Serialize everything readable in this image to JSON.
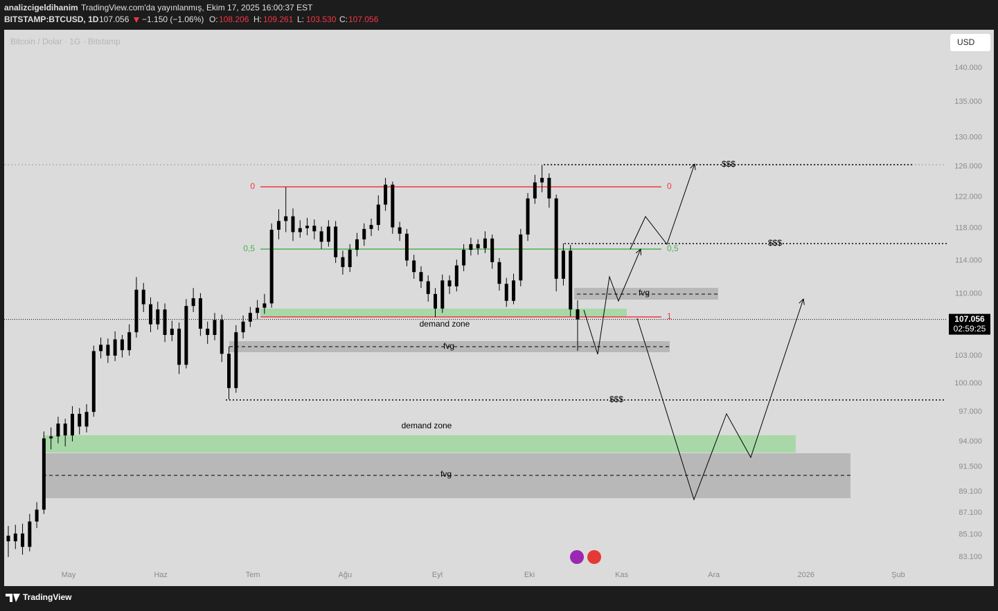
{
  "header": {
    "author": "analizcigeldihanim",
    "published": "TradingView.com'da yayınlanmış, Ekim 17, 2025 16:00:37 EST",
    "symbol": "BITSTAMP:BTCUSD, 1D",
    "price": "107.056",
    "change": "−1.150 (−1.06%)",
    "open_label": "O:",
    "open": "108.206",
    "high_label": "H:",
    "high": "109.261",
    "low_label": "L:",
    "low": "103.530",
    "close_label": "C:",
    "close": "107.056",
    "watermark": "Bitcoin / Dolar · 1G · Bitstamp",
    "currency": "USD",
    "brand": "TradingView"
  },
  "chart_data": {
    "type": "candlestick",
    "candle_color": "#000000",
    "log_scale": true,
    "grid": false,
    "ylim": [
      82300,
      145800
    ],
    "yticks": [
      {
        "value": 140000,
        "label": "140.000"
      },
      {
        "value": 135000,
        "label": "135.000"
      },
      {
        "value": 130000,
        "label": "130.000"
      },
      {
        "value": 126000,
        "label": "126.000"
      },
      {
        "value": 122000,
        "label": "122.000"
      },
      {
        "value": 118000,
        "label": "118.000"
      },
      {
        "value": 114000,
        "label": "114.000"
      },
      {
        "value": 110000,
        "label": "110.000"
      },
      {
        "value": 103000,
        "label": "103.000"
      },
      {
        "value": 100000,
        "label": "100.000"
      },
      {
        "value": 97000,
        "label": "97.000"
      },
      {
        "value": 94000,
        "label": "94.000"
      },
      {
        "value": 91500,
        "label": "91.500"
      },
      {
        "value": 89100,
        "label": "89.100"
      },
      {
        "value": 87100,
        "label": "87.100"
      },
      {
        "value": 85100,
        "label": "85.100"
      },
      {
        "value": 83100,
        "label": "83.100"
      }
    ],
    "x_labels": [
      "May",
      "Haz",
      "Tem",
      "Ağu",
      "Eyl",
      "Eki",
      "Kas",
      "Ara",
      "2026",
      "Şub"
    ],
    "last_price": {
      "value": 107056,
      "label": "107.056"
    },
    "countdown": "02:59:25",
    "open": [
      85000,
      84500,
      85200,
      84000,
      86300,
      87400,
      94300,
      94500,
      95800,
      94600,
      96800,
      95500,
      97000,
      103500,
      104200,
      103000,
      104800,
      103600,
      105600,
      110500,
      108800,
      106500,
      108200,
      105300,
      106000,
      102000,
      108600,
      109500,
      106000,
      105300,
      107000,
      103200,
      99500,
      105600,
      106800,
      107800,
      108400,
      108900,
      117800,
      118900,
      119500,
      117500,
      118000,
      118300,
      117600,
      116300,
      118200,
      114400,
      113200,
      115300,
      116600,
      117900,
      118400,
      121000,
      123600,
      118100,
      117300,
      114000,
      112600,
      111500,
      110000,
      108300,
      111600,
      110900,
      113400,
      115300,
      116000,
      115500,
      116700,
      113800,
      111200,
      109200,
      111600,
      117200,
      121800,
      123900,
      124500,
      121800,
      111800,
      115200,
      108206
    ],
    "high": [
      85900,
      86000,
      86100,
      87000,
      88100,
      95000,
      95400,
      96500,
      96300,
      97600,
      97400,
      97800,
      104100,
      105000,
      104900,
      105700,
      105300,
      106500,
      112000,
      111300,
      109600,
      109100,
      108900,
      106900,
      106700,
      109400,
      110700,
      110100,
      106800,
      107800,
      107600,
      104000,
      106400,
      107500,
      108500,
      109300,
      110000,
      118600,
      120400,
      123300,
      120500,
      119000,
      119300,
      119100,
      118200,
      119000,
      118900,
      115200,
      116000,
      117400,
      118600,
      119200,
      122200,
      124500,
      124000,
      118800,
      117900,
      114700,
      113300,
      112200,
      110700,
      112300,
      112200,
      114100,
      116000,
      116800,
      116600,
      117600,
      117200,
      114300,
      111900,
      112400,
      117900,
      122500,
      124900,
      126200,
      125100,
      122300,
      116100,
      115900,
      109261
    ],
    "low": [
      83100,
      83800,
      83300,
      83600,
      85700,
      87000,
      93200,
      93800,
      93500,
      94000,
      94700,
      94900,
      96500,
      102700,
      102200,
      102400,
      102800,
      103000,
      105000,
      107900,
      105600,
      105900,
      104500,
      104600,
      101000,
      101600,
      107900,
      105200,
      104300,
      104700,
      102300,
      98300,
      99000,
      104900,
      106200,
      107100,
      107700,
      108400,
      116600,
      117500,
      116400,
      116800,
      117100,
      116600,
      115400,
      115700,
      113700,
      112300,
      112600,
      114500,
      115800,
      117000,
      117700,
      120200,
      117300,
      116400,
      113300,
      111800,
      110700,
      109100,
      107300,
      107800,
      110000,
      110300,
      112700,
      114600,
      114700,
      114900,
      113000,
      110400,
      108500,
      108800,
      110900,
      116400,
      121100,
      122600,
      120600,
      110300,
      111000,
      107400,
      103530
    ],
    "close": [
      84500,
      85200,
      84000,
      86300,
      87400,
      94300,
      94500,
      95800,
      94600,
      96800,
      95500,
      97000,
      103500,
      104200,
      103000,
      104800,
      103600,
      105600,
      110500,
      108800,
      106500,
      108200,
      105300,
      106000,
      102000,
      108600,
      109500,
      106000,
      105300,
      107000,
      103200,
      99500,
      105600,
      106800,
      107800,
      108400,
      108900,
      117800,
      118900,
      119500,
      117500,
      118000,
      118300,
      117600,
      116300,
      118200,
      114400,
      113200,
      115300,
      116600,
      117900,
      118400,
      121000,
      123600,
      118100,
      117300,
      114000,
      112600,
      111500,
      110000,
      108300,
      111600,
      110900,
      113400,
      115300,
      116000,
      115500,
      116700,
      113800,
      111200,
      109200,
      111600,
      117200,
      121800,
      123900,
      124500,
      121800,
      111800,
      115200,
      108200,
      107056
    ]
  },
  "annotations": {
    "fib_left": [
      "0",
      "0,5"
    ],
    "fib_right": [
      "0",
      "0,5",
      "1"
    ],
    "zones": [
      "demand zone",
      "fvg",
      "fvg",
      "demand zone",
      "fvg"
    ],
    "liquidity": [
      "$$$",
      "$$$",
      "$$$"
    ]
  }
}
